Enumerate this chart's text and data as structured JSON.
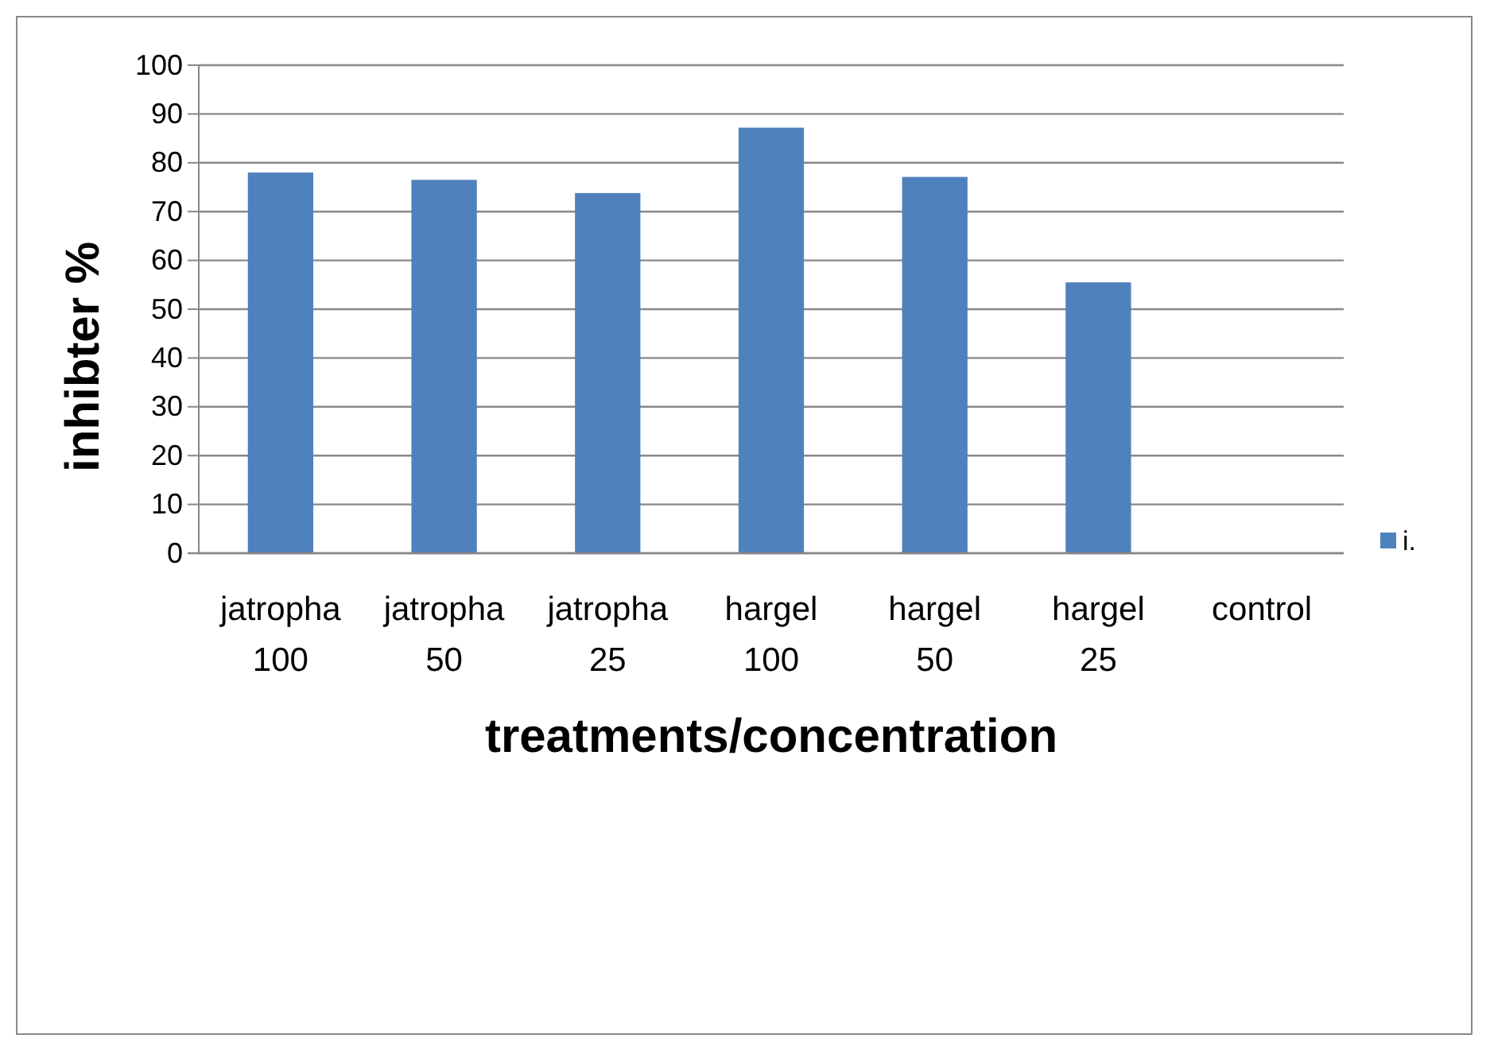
{
  "chart_data": {
    "type": "bar",
    "xlabel": "treatments/concentration",
    "ylabel": "inhibter %",
    "categories": [
      "jatropha 100",
      "jatropha 50",
      "jatropha 25",
      "hargel 100",
      "hargel 50",
      "hargel 25",
      "control"
    ],
    "series": [
      {
        "name": "i.",
        "color": "#4f81bd",
        "values": [
          78.0,
          76.5,
          73.8,
          87.2,
          77.1,
          55.5,
          0
        ]
      }
    ],
    "ylim": [
      0,
      100
    ],
    "yticks": [
      0,
      10,
      20,
      30,
      40,
      50,
      60,
      70,
      80,
      90,
      100
    ],
    "grid": "y",
    "legend": "right"
  }
}
